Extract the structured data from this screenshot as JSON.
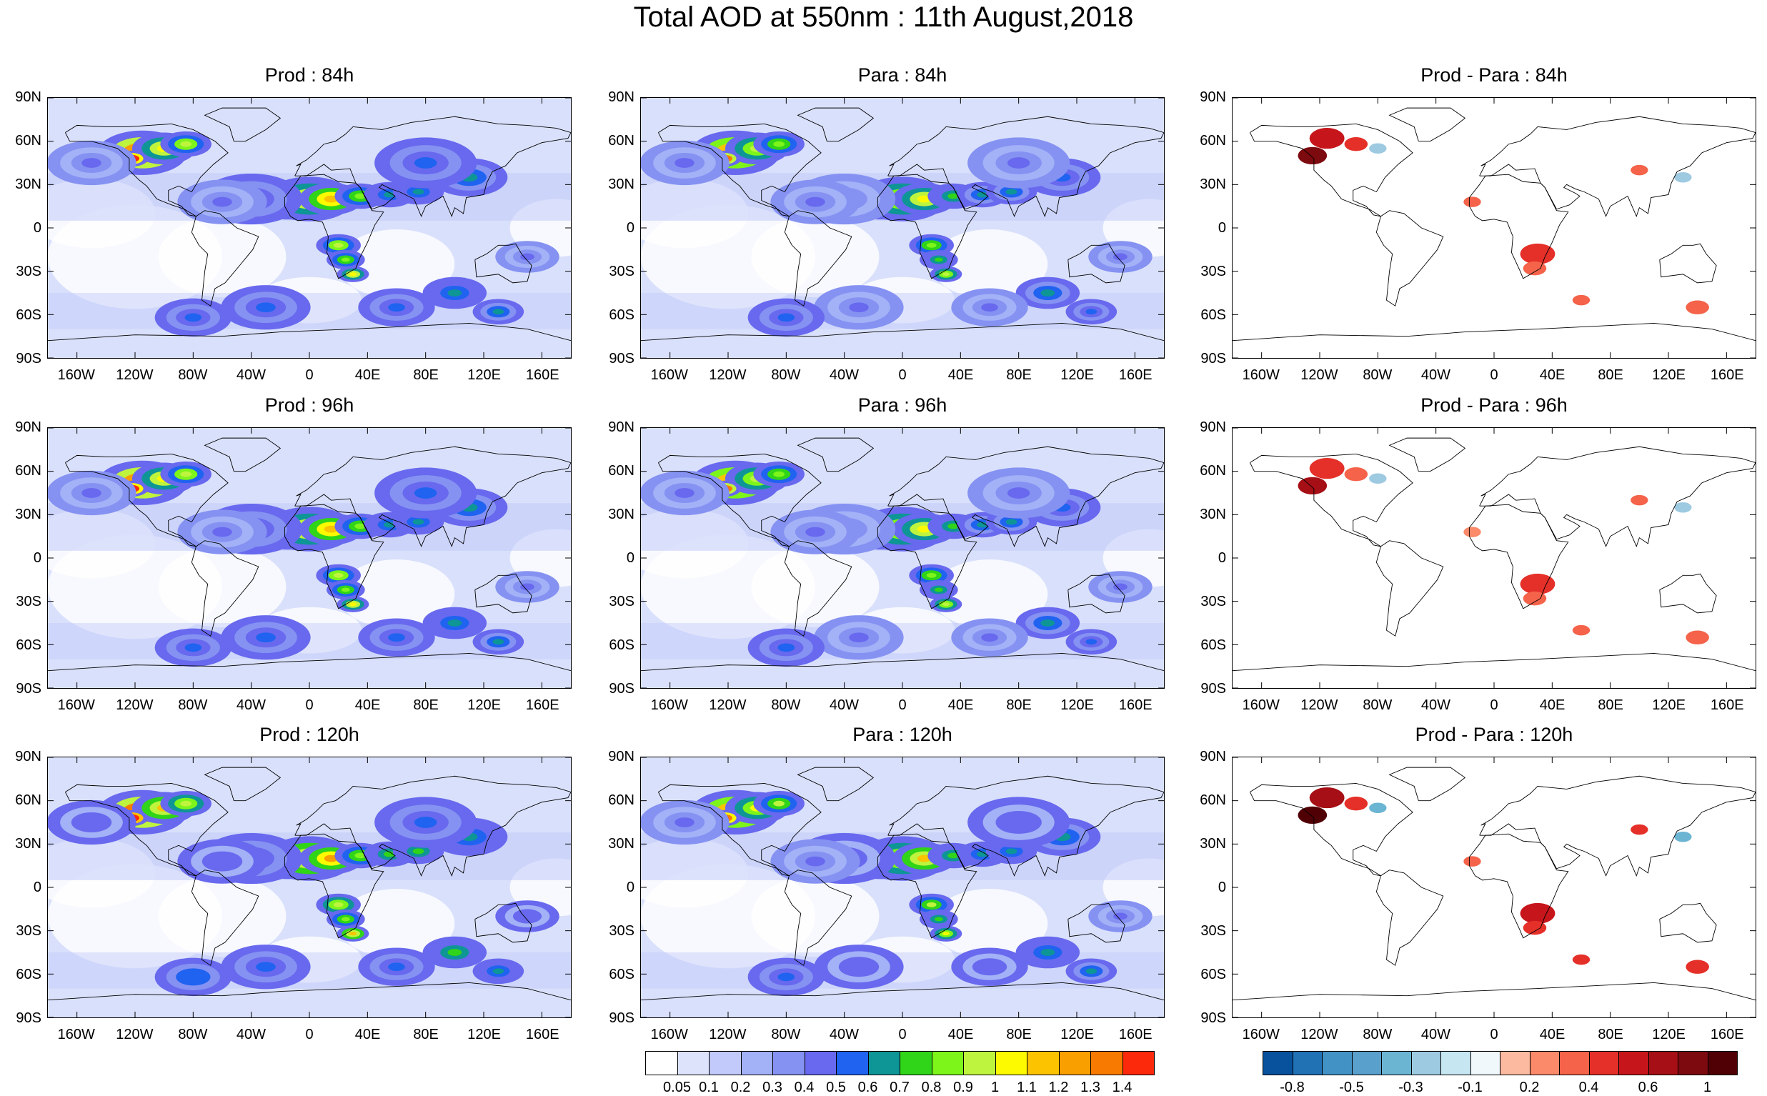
{
  "title": "Total AOD at 550nm : 11th August,2018",
  "panels": [
    {
      "title": "Prod : 84h",
      "kind": "aod"
    },
    {
      "title": "Para : 84h",
      "kind": "aod"
    },
    {
      "title": "Prod - Para : 84h",
      "kind": "diff"
    },
    {
      "title": "Prod : 96h",
      "kind": "aod"
    },
    {
      "title": "Para : 96h",
      "kind": "aod"
    },
    {
      "title": "Prod - Para : 96h",
      "kind": "diff"
    },
    {
      "title": "Prod : 120h",
      "kind": "aod"
    },
    {
      "title": "Para : 120h",
      "kind": "aod"
    },
    {
      "title": "Prod - Para : 120h",
      "kind": "diff"
    }
  ],
  "lat_labels": [
    "90N",
    "60N",
    "30N",
    "0",
    "30S",
    "60S",
    "90S"
  ],
  "lon_labels": [
    "160W",
    "120W",
    "80W",
    "40W",
    "0",
    "40E",
    "80E",
    "120E",
    "160E"
  ],
  "aod_colorbar": {
    "colors": [
      "#ffffff",
      "#dde3fb",
      "#c1cafa",
      "#a3b1f7",
      "#8592f2",
      "#6869ee",
      "#1f63f0",
      "#0e9596",
      "#30d418",
      "#7df51a",
      "#bff43e",
      "#fdfa00",
      "#fbc300",
      "#f99f00",
      "#f97a00",
      "#fc2a0b"
    ],
    "labels": [
      "0.05",
      "0.1",
      "0.2",
      "0.3",
      "0.4",
      "0.5",
      "0.6",
      "0.7",
      "0.8",
      "0.9",
      "1",
      "1.1",
      "1.2",
      "1.3",
      "1.4"
    ]
  },
  "diff_colorbar": {
    "colors": [
      "#08519c",
      "#2171b5",
      "#4292c6",
      "#5aa0cc",
      "#6bb5d3",
      "#9ecae1",
      "#c6e6f2",
      "#f0f8fc",
      "#fcbba1",
      "#fb8a6a",
      "#f4634a",
      "#e43029",
      "#c6161b",
      "#a50f15",
      "#7d0a0e",
      "#500005"
    ],
    "labels": [
      "-0.8",
      "-0.5",
      "-0.3",
      "-0.1",
      "0.2",
      "0.4",
      "0.6",
      "1"
    ]
  }
}
